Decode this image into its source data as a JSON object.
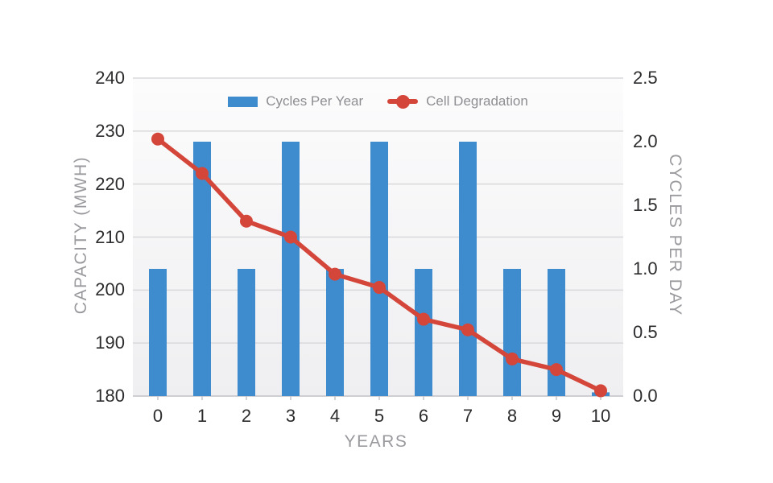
{
  "chart_data": {
    "type": "bar+line combo, dual y-axis",
    "title": "",
    "x": [
      0,
      1,
      2,
      3,
      4,
      5,
      6,
      7,
      8,
      9,
      10
    ],
    "x_tick_labels": [
      "0",
      "1",
      "2",
      "3",
      "4",
      "5",
      "6",
      "7",
      "8",
      "9",
      "10"
    ],
    "xlabel": "YEARS",
    "left_axis": {
      "label": "CAPACITY (MWH)",
      "min": 180,
      "max": 240,
      "tick_labels": [
        "180",
        "190",
        "200",
        "210",
        "220",
        "230",
        "240"
      ]
    },
    "right_axis": {
      "label": "CYCLES PER DAY",
      "min": 0,
      "max": 2.5,
      "tick_labels": [
        "0.0",
        "0.5",
        "1.0",
        "1.5",
        "2.0",
        "2.5"
      ]
    },
    "grid": true,
    "legend_position": "top-center-inside",
    "series": [
      {
        "name": "Cycles Per Year",
        "type": "bar",
        "color": "#3e8ccd",
        "values_left_axis_units": [
          204,
          228,
          204,
          228,
          204,
          228,
          204,
          228,
          204,
          204,
          180.7
        ],
        "values_cycles_per_day": [
          1.0,
          2.0,
          1.0,
          2.0,
          1.0,
          2.0,
          1.0,
          2.0,
          1.0,
          1.0,
          0.03
        ]
      },
      {
        "name": "Cell Degradation",
        "type": "line",
        "color": "#d5463a",
        "values_left_axis_units": [
          228.5,
          222,
          213,
          210,
          203,
          200.5,
          194.5,
          192.5,
          187,
          185,
          181
        ],
        "values_cycles_per_day": [
          2.02,
          1.75,
          1.38,
          1.25,
          0.96,
          0.85,
          0.6,
          0.52,
          0.29,
          0.21,
          0.04
        ]
      }
    ],
    "colors": {
      "bar": "#3e8ccd",
      "line": "#d5463a",
      "grid": "#d9d9dc",
      "baseline": "#cfcfd3",
      "tick_mark": "#c6c6ca",
      "tick_text": "#2c2c2e",
      "axis_title": "#9a9a9e",
      "legend_text": "#8e8e92",
      "plot_bg_top": "#fcfcfd",
      "plot_bg_bottom": "#efeff1",
      "page_bg": "#ffffff"
    }
  }
}
